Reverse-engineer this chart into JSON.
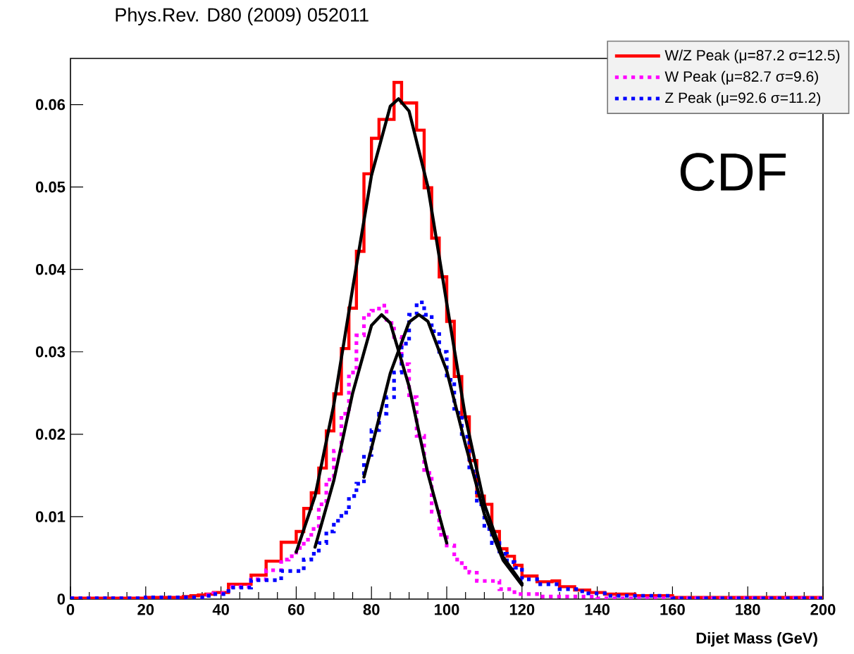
{
  "chart_data": {
    "type": "histogram",
    "title": "Phys.Rev. D80 (2009) 052011",
    "xlabel": "Dijet Mass (GeV)",
    "bins": [
      0,
      2,
      4,
      6,
      8,
      10,
      12,
      14,
      16,
      18,
      20,
      22,
      24,
      26,
      28,
      30,
      32,
      34,
      36,
      38,
      40,
      42,
      44,
      46,
      48,
      50,
      52,
      54,
      56,
      58,
      60,
      62,
      64,
      66,
      68,
      70,
      72,
      74,
      76,
      78,
      80,
      82,
      84,
      86,
      88,
      90,
      92,
      94,
      96,
      98,
      100,
      102,
      104,
      106,
      108,
      110,
      112,
      114,
      116,
      118,
      120,
      122,
      124,
      126,
      128,
      130,
      132,
      134,
      136,
      138,
      140,
      142,
      144,
      146,
      148,
      150,
      152,
      154,
      156,
      158,
      160,
      162,
      164,
      166,
      168,
      170,
      172,
      174,
      176,
      178,
      180,
      182,
      184,
      186,
      188,
      190,
      192,
      194,
      196,
      198,
      200
    ],
    "series": [
      {
        "name": "W/Z Peak (μ=87.2 σ=12.5)",
        "color": "#ff0000",
        "line_style": "solid",
        "values": [
          0.0001,
          0.0001,
          0.0001,
          0.0001,
          0.0001,
          0.0001,
          0.0001,
          0.0001,
          0.0001,
          0.0001,
          0.0002,
          0.0002,
          0.0002,
          0.0002,
          0.0002,
          0.0003,
          0.0004,
          0.0005,
          0.0006,
          0.0008,
          0.0008,
          0.0018,
          0.0018,
          0.0018,
          0.0029,
          0.0029,
          0.0046,
          0.0046,
          0.0069,
          0.0069,
          0.0082,
          0.011,
          0.0129,
          0.0159,
          0.0204,
          0.0249,
          0.0304,
          0.0353,
          0.0422,
          0.0516,
          0.0559,
          0.0582,
          0.0582,
          0.0627,
          0.0602,
          0.0602,
          0.0569,
          0.0499,
          0.0438,
          0.0391,
          0.0337,
          0.027,
          0.0221,
          0.0168,
          0.0125,
          0.0115,
          0.0082,
          0.0061,
          0.0052,
          0.0041,
          0.0028,
          0.0028,
          0.0021,
          0.0021,
          0.0022,
          0.0015,
          0.0015,
          0.0011,
          0.0011,
          0.0008,
          0.0008,
          0.0006,
          0.0006,
          0.0006,
          0.0006,
          0.0004,
          0.0004,
          0.0004,
          0.0004,
          0.0004,
          0.0002,
          0.0002,
          0.0002,
          0.0002,
          0.0002,
          0.0002,
          0.0002,
          0.0002,
          0.0002,
          0.0002,
          0.0002,
          0.0002,
          0.0002,
          0.0002,
          0.0002,
          0.0002,
          0.0002,
          0.0002,
          0.0002,
          0.0002
        ]
      },
      {
        "name": "W Peak (μ=82.7 σ=9.6)",
        "color": "#ff00ff",
        "line_style": "dotted",
        "values": [
          0.0001,
          0.0001,
          0.0001,
          0.0001,
          0.0001,
          0.0001,
          0.0001,
          0.0001,
          0.0001,
          0.0001,
          0.0002,
          0.0002,
          0.0002,
          0.0002,
          0.0002,
          0.0002,
          0.0002,
          0.0002,
          0.0005,
          0.0007,
          0.0007,
          0.0015,
          0.0015,
          0.0015,
          0.0024,
          0.0024,
          0.0035,
          0.0035,
          0.0048,
          0.0052,
          0.0062,
          0.0072,
          0.0085,
          0.0115,
          0.0145,
          0.018,
          0.0225,
          0.0275,
          0.032,
          0.0345,
          0.035,
          0.0356,
          0.0335,
          0.0318,
          0.0285,
          0.0245,
          0.0198,
          0.0153,
          0.0106,
          0.0078,
          0.0065,
          0.0048,
          0.0038,
          0.0032,
          0.0022,
          0.0022,
          0.0022,
          0.0012,
          0.0012,
          0.0006,
          0.0006,
          0.0006,
          0.0003,
          0.0003,
          0.0003,
          0.0003,
          0.0003,
          0.0003,
          0.0003,
          0.0003,
          0.0001,
          0.0001,
          0.0001,
          0.0001,
          0.0001,
          0.0001,
          0.0001,
          0.0001,
          0.0001,
          0.0001,
          0.0001,
          0.0001,
          0.0001,
          0.0001,
          0.0001,
          0.0001,
          0.0001,
          0.0001,
          0.0001,
          0.0001,
          0.0001,
          0.0001,
          0.0001,
          0.0001,
          0.0001,
          0.0001,
          0.0001,
          0.0001,
          0.0001,
          0.0001
        ]
      },
      {
        "name": "Z Peak (μ=92.6 σ=11.2)",
        "color": "#0000ff",
        "line_style": "dotted",
        "values": [
          0.0001,
          0.0001,
          0.0001,
          0.0001,
          0.0001,
          0.0001,
          0.0001,
          0.0001,
          0.0001,
          0.0001,
          0.0002,
          0.0002,
          0.0002,
          0.0002,
          0.0002,
          0.0002,
          0.0002,
          0.0002,
          0.0004,
          0.0006,
          0.0006,
          0.0014,
          0.0014,
          0.0014,
          0.0023,
          0.0023,
          0.0023,
          0.0023,
          0.0034,
          0.0034,
          0.0034,
          0.0048,
          0.0055,
          0.0068,
          0.0082,
          0.0095,
          0.0105,
          0.0125,
          0.014,
          0.0175,
          0.0205,
          0.0225,
          0.0245,
          0.0275,
          0.031,
          0.0345,
          0.036,
          0.0345,
          0.0325,
          0.03,
          0.0266,
          0.0226,
          0.0197,
          0.0155,
          0.0115,
          0.0085,
          0.0068,
          0.0055,
          0.0045,
          0.0038,
          0.0024,
          0.0024,
          0.0018,
          0.0018,
          0.0018,
          0.0012,
          0.0012,
          0.0012,
          0.0007,
          0.0007,
          0.0007,
          0.0004,
          0.0004,
          0.0004,
          0.0004,
          0.0004,
          0.0004,
          0.0004,
          0.0004,
          0.0004,
          0.0001,
          0.0001,
          0.0001,
          0.0001,
          0.0001,
          0.0001,
          0.0001,
          0.0001,
          0.0001,
          0.0001,
          0.0001,
          0.0001,
          0.0001,
          0.0001,
          0.0001,
          0.0001,
          0.0001,
          0.0001,
          0.0001,
          0.0001
        ]
      },
      {
        "type": "line",
        "color": "#000000",
        "line_style": "solid",
        "x": [
          60,
          65,
          70,
          75,
          80,
          85,
          87.2,
          90,
          95,
          100,
          105,
          110,
          115,
          120
        ],
        "values": [
          0.0057,
          0.0125,
          0.0236,
          0.0377,
          0.0514,
          0.0598,
          0.0607,
          0.0592,
          0.05,
          0.0359,
          0.022,
          0.0115,
          0.0051,
          0.0019
        ]
      },
      {
        "type": "line",
        "color": "#000000",
        "line_style": "solid",
        "x": [
          65,
          70,
          75,
          80,
          82.7,
          85,
          90,
          95,
          100
        ],
        "values": [
          0.0063,
          0.0144,
          0.025,
          0.0332,
          0.0345,
          0.0335,
          0.0258,
          0.0152,
          0.0068
        ]
      },
      {
        "type": "line",
        "color": "#000000",
        "line_style": "solid",
        "x": [
          78,
          80,
          85,
          90,
          92.6,
          95,
          100,
          105,
          110,
          115,
          120
        ],
        "values": [
          0.0148,
          0.0183,
          0.0274,
          0.0336,
          0.0345,
          0.0337,
          0.0277,
          0.0187,
          0.0103,
          0.0047,
          0.0017
        ]
      }
    ],
    "xlim": [
      0,
      200
    ],
    "ylim": [
      0,
      0.0656
    ],
    "xticks": [
      0,
      20,
      40,
      60,
      80,
      100,
      120,
      140,
      160,
      180,
      200
    ],
    "yticks": [
      0,
      0.01,
      0.02,
      0.03,
      0.04,
      0.05,
      0.06
    ],
    "legend": "top right",
    "annotations": [
      "CDF"
    ]
  }
}
